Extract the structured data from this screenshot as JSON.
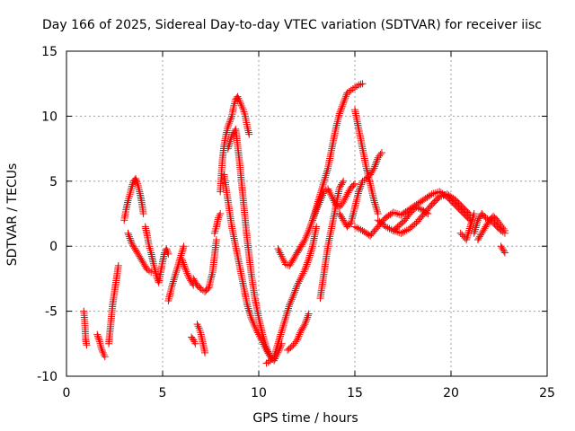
{
  "chart_data": {
    "type": "scatter",
    "title": "Day 166 of 2025, Sidereal Day-to-day VTEC variation (SDTVAR) for receiver iisc",
    "xlabel": "GPS time / hours",
    "ylabel": "SDTVAR / TECUs",
    "xlim": [
      0,
      25
    ],
    "ylim": [
      -10,
      15
    ],
    "xticks": [
      0,
      5,
      10,
      15,
      20,
      25
    ],
    "yticks": [
      -10,
      -5,
      0,
      5,
      10,
      15
    ],
    "xtick_labels": [
      "0",
      "5",
      "10",
      "15",
      "20",
      "25"
    ],
    "ytick_labels": [
      "-10",
      "-5",
      "0",
      "5",
      "10",
      "15"
    ],
    "grid": true,
    "marker": "+",
    "color": "#ff0000",
    "series": [
      {
        "x": [
          0.9,
          0.95,
          1.0,
          1.05
        ],
        "y": [
          -5.0,
          -5.8,
          -7.2,
          -7.6
        ]
      },
      {
        "x": [
          1.6,
          1.7,
          1.8,
          1.9,
          2.0
        ],
        "y": [
          -6.8,
          -7.2,
          -7.8,
          -8.2,
          -8.5
        ]
      },
      {
        "x": [
          2.2,
          2.3,
          2.4,
          2.5,
          2.6,
          2.7
        ],
        "y": [
          -7.5,
          -6.0,
          -4.5,
          -3.5,
          -2.5,
          -1.5
        ]
      },
      {
        "x": [
          3.0,
          3.1,
          3.2,
          3.3,
          3.4,
          3.5,
          3.6,
          3.7,
          3.8,
          3.9,
          4.0
        ],
        "y": [
          2.0,
          2.8,
          3.5,
          4.0,
          4.6,
          5.0,
          5.2,
          4.8,
          4.2,
          3.5,
          2.5
        ]
      },
      {
        "x": [
          4.1,
          4.2,
          4.3,
          4.4,
          4.5,
          4.6,
          4.7,
          4.8,
          4.9,
          5.0,
          5.1,
          5.2,
          5.3
        ],
        "y": [
          1.5,
          0.8,
          0.0,
          -0.5,
          -1.2,
          -1.8,
          -2.4,
          -2.8,
          -2.0,
          -1.2,
          -0.5,
          -0.2,
          -0.6
        ]
      },
      {
        "x": [
          3.2,
          3.4,
          3.6,
          3.8,
          4.0,
          4.2,
          4.4
        ],
        "y": [
          1.0,
          0.2,
          -0.3,
          -0.8,
          -1.3,
          -1.8,
          -2.0
        ]
      },
      {
        "x": [
          5.3,
          5.5,
          5.7,
          5.9,
          6.1
        ],
        "y": [
          -4.2,
          -3.0,
          -2.0,
          -1.0,
          0.0
        ]
      },
      {
        "x": [
          6.0,
          6.2,
          6.4,
          6.6
        ],
        "y": [
          -1.0,
          -1.8,
          -2.5,
          -3.0
        ]
      },
      {
        "x": [
          6.5,
          6.6,
          6.7
        ],
        "y": [
          -7.0,
          -7.2,
          -7.5
        ]
      },
      {
        "x": [
          6.8,
          6.9,
          7.0,
          7.1,
          7.2
        ],
        "y": [
          -6.0,
          -6.3,
          -6.8,
          -7.5,
          -8.2
        ]
      },
      {
        "x": [
          6.6,
          6.8,
          7.0,
          7.2,
          7.4,
          7.6,
          7.8
        ],
        "y": [
          -2.5,
          -3.0,
          -3.3,
          -3.5,
          -3.2,
          -2.0,
          0.5
        ]
      },
      {
        "x": [
          7.7,
          7.8,
          7.9,
          8.0
        ],
        "y": [
          1.0,
          1.5,
          2.2,
          2.5
        ]
      },
      {
        "x": [
          8.0,
          8.1,
          8.2,
          8.3,
          8.4,
          8.5,
          8.6,
          8.7,
          8.8,
          8.9,
          9.0,
          9.1,
          9.2,
          9.3,
          9.4,
          9.5
        ],
        "y": [
          4.2,
          6.5,
          7.8,
          8.6,
          9.2,
          9.6,
          10.0,
          10.8,
          11.3,
          11.5,
          11.2,
          10.8,
          10.5,
          10.0,
          9.2,
          8.6
        ]
      },
      {
        "x": [
          8.2,
          8.4,
          8.6,
          8.8,
          9.0,
          9.2,
          9.4,
          9.6,
          9.8,
          10.0,
          10.2,
          10.4,
          10.6
        ],
        "y": [
          5.5,
          3.5,
          1.5,
          0.0,
          -1.5,
          -3.0,
          -4.5,
          -5.5,
          -6.2,
          -6.8,
          -7.4,
          -8.0,
          -8.5
        ]
      },
      {
        "x": [
          8.4,
          8.6,
          8.8,
          9.0,
          9.2,
          9.4,
          9.6,
          9.8,
          10.0,
          10.2,
          10.4,
          10.6,
          10.8,
          11.0,
          11.2
        ],
        "y": [
          7.5,
          8.5,
          9.0,
          6.5,
          3.5,
          0.5,
          -2.0,
          -4.0,
          -5.5,
          -6.8,
          -7.8,
          -8.5,
          -8.8,
          -8.2,
          -7.5
        ]
      },
      {
        "x": [
          10.4,
          10.6,
          10.8,
          11.0,
          11.2,
          11.4,
          11.6,
          11.8,
          12.0,
          12.2,
          12.4,
          12.6,
          12.8,
          13.0
        ],
        "y": [
          -9.0,
          -8.8,
          -8.5,
          -7.5,
          -6.5,
          -5.5,
          -4.5,
          -3.8,
          -3.0,
          -2.4,
          -1.8,
          -1.0,
          0.0,
          1.5
        ]
      },
      {
        "x": [
          11.0,
          11.2,
          11.4,
          11.6,
          11.8,
          12.0,
          12.2
        ],
        "y": [
          -0.2,
          -0.8,
          -1.4,
          -1.5,
          -1.0,
          -0.5,
          0.0
        ]
      },
      {
        "x": [
          11.5,
          11.8,
          12.0,
          12.2,
          12.4,
          12.6
        ],
        "y": [
          -8.0,
          -7.6,
          -7.2,
          -6.5,
          -6.0,
          -5.2
        ]
      },
      {
        "x": [
          12.0,
          12.2,
          12.4,
          12.6,
          12.8,
          13.0,
          13.2,
          13.4,
          13.6,
          13.8,
          14.0,
          14.2,
          14.4,
          14.6,
          14.8,
          15.0,
          15.2,
          15.4
        ],
        "y": [
          -0.5,
          0.0,
          0.5,
          1.2,
          2.0,
          3.0,
          4.0,
          5.0,
          6.0,
          7.5,
          9.0,
          10.2,
          11.0,
          11.8,
          12.0,
          12.2,
          12.4,
          12.5
        ]
      },
      {
        "x": [
          13.2,
          13.4,
          13.6,
          13.8,
          14.0,
          14.2,
          14.4
        ],
        "y": [
          -4.0,
          -2.0,
          0.0,
          1.5,
          3.0,
          4.5,
          5.0
        ]
      },
      {
        "x": [
          12.8,
          13.0,
          13.2,
          13.4,
          13.6,
          13.8,
          14.0,
          14.2,
          14.4,
          14.6,
          14.8,
          15.0
        ],
        "y": [
          2.0,
          2.8,
          3.5,
          4.2,
          4.4,
          3.8,
          3.2,
          3.0,
          3.4,
          4.0,
          4.5,
          4.8
        ]
      },
      {
        "x": [
          14.2,
          14.4,
          14.6,
          14.8,
          15.0,
          15.2,
          15.4,
          15.6,
          15.8,
          16.0,
          16.2,
          16.4
        ],
        "y": [
          2.5,
          2.0,
          1.5,
          1.8,
          3.0,
          4.2,
          5.0,
          5.2,
          5.5,
          6.0,
          6.8,
          7.2
        ]
      },
      {
        "x": [
          15.0,
          15.2,
          15.4,
          15.6,
          15.8,
          16.0,
          16.2
        ],
        "y": [
          10.5,
          9.0,
          7.5,
          6.0,
          4.8,
          3.5,
          2.5
        ]
      },
      {
        "x": [
          15.0,
          15.4,
          15.8,
          16.2,
          16.6,
          17.0,
          17.4,
          17.8,
          18.2,
          18.6,
          19.0,
          19.4,
          19.8,
          20.2,
          20.6,
          21.0
        ],
        "y": [
          1.5,
          1.2,
          0.8,
          1.5,
          2.2,
          2.6,
          2.4,
          2.8,
          3.2,
          3.6,
          4.0,
          4.2,
          3.8,
          3.2,
          2.6,
          2.0
        ]
      },
      {
        "x": [
          16.2,
          16.6,
          17.0,
          17.4,
          17.8,
          18.2,
          18.6,
          19.0,
          19.4,
          19.8,
          20.2,
          20.6,
          21.0
        ],
        "y": [
          2.0,
          1.5,
          1.2,
          1.0,
          1.3,
          1.8,
          2.5,
          3.2,
          3.8,
          4.0,
          3.6,
          3.0,
          2.4
        ]
      },
      {
        "x": [
          17.0,
          17.3,
          17.6,
          17.9,
          18.2,
          18.5,
          18.8
        ],
        "y": [
          1.2,
          1.6,
          2.0,
          2.6,
          3.0,
          2.8,
          2.5
        ]
      },
      {
        "x": [
          20.5,
          20.8,
          21.0,
          21.2
        ],
        "y": [
          1.0,
          0.5,
          1.5,
          2.5
        ]
      },
      {
        "x": [
          21.2,
          21.4,
          21.6,
          21.8,
          22.0,
          22.2,
          22.4,
          22.6,
          22.8
        ],
        "y": [
          1.0,
          2.0,
          2.5,
          2.2,
          2.0,
          1.8,
          1.5,
          1.2,
          1.0
        ]
      },
      {
        "x": [
          21.4,
          21.6,
          21.8,
          22.0,
          22.2,
          22.4,
          22.6,
          22.8
        ],
        "y": [
          0.5,
          1.0,
          1.5,
          2.0,
          2.3,
          2.0,
          1.6,
          1.2
        ]
      },
      {
        "x": [
          22.6,
          22.8
        ],
        "y": [
          0.0,
          -0.5
        ]
      }
    ]
  }
}
